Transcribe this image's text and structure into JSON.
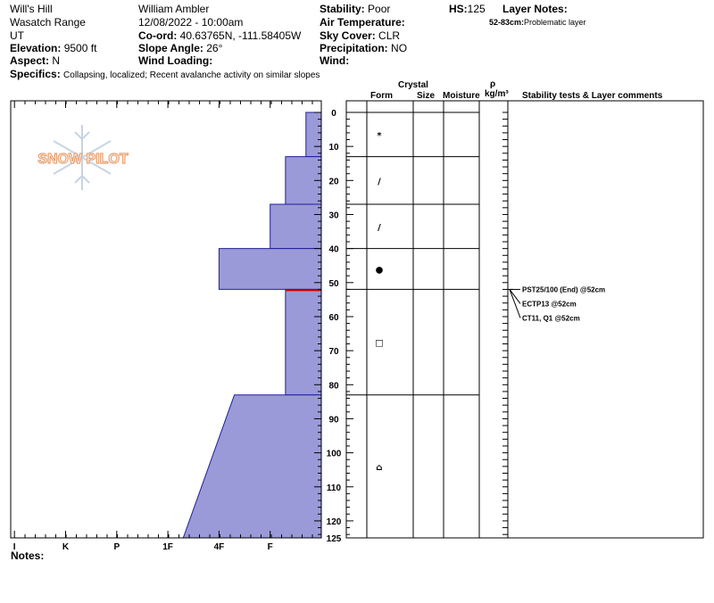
{
  "header": {
    "location": "Will's Hill",
    "range": "Wasatch Range",
    "state": "UT",
    "elevation_label": "Elevation:",
    "elevation_value": "9500 ft",
    "aspect_label": "Aspect:",
    "aspect_value": "N",
    "specifics_label": "Specifics:",
    "specifics_value": "Collapsing, localized; Recent avalanche activity on similar slopes",
    "observer": "William Ambler",
    "datetime": "12/08/2022 - 10:00am",
    "coord_label": "Co-ord:",
    "coord_value": "40.63765N, -111.58405W",
    "slope_label": "Slope Angle:",
    "slope_value": "26°",
    "wind_loading_label": "Wind Loading:",
    "stability_label": "Stability:",
    "stability_value": "Poor",
    "air_temp_label": "Air Temperature:",
    "sky_label": "Sky Cover:",
    "sky_value": "CLR",
    "precip_label": "Precipitation:",
    "precip_value": "NO",
    "wind_label": "Wind:",
    "hs_label": "HS:",
    "hs_value": "125",
    "layer_notes_label": "Layer Notes:",
    "layer_note_depth": "52-83cm:",
    "layer_note_text": "Problematic layer"
  },
  "logo_text": "SNOW PILOT",
  "columns": {
    "crystal": "Crystal",
    "form": "Form",
    "size": "Size",
    "moisture": "Moisture",
    "rho": "ρ",
    "density_unit": "kg/m³",
    "stability": "Stability tests & Layer comments"
  },
  "notes_label": "Notes:",
  "stability_tests": [
    {
      "text": "PST25/100 (End) @52cm",
      "depth": 52
    },
    {
      "text": "ECTP13 @52cm",
      "depth": 52
    },
    {
      "text": "CT11, Q1 @52cm",
      "depth": 52
    }
  ],
  "colors": {
    "profile_fill": "#9a9ad8",
    "profile_stroke": "#1f1f9a",
    "weak_layer": "#cc0000"
  },
  "chart_data": {
    "type": "area",
    "x_axis": "hardness",
    "y_axis": "depth_cm",
    "hardness_labels": [
      "I",
      "K",
      "P",
      "1F",
      "4F",
      "F"
    ],
    "hardness_label_values": [
      6,
      5,
      4,
      3,
      2,
      1
    ],
    "depth_ticks": [
      0,
      10,
      20,
      30,
      40,
      50,
      60,
      70,
      80,
      90,
      100,
      110,
      120,
      125
    ],
    "ylim": [
      0,
      125
    ],
    "layers": [
      {
        "top": 0,
        "bottom": 13,
        "hardness_top": 0.3,
        "hardness_bottom": 0.3,
        "form": "*"
      },
      {
        "top": 13,
        "bottom": 27,
        "hardness_top": 0.7,
        "hardness_bottom": 0.7,
        "form": "/"
      },
      {
        "top": 27,
        "bottom": 40,
        "hardness_top": 1.0,
        "hardness_bottom": 1.0,
        "form": "/"
      },
      {
        "top": 40,
        "bottom": 52,
        "hardness_top": 2.0,
        "hardness_bottom": 2.0,
        "form": "●"
      },
      {
        "top": 52,
        "bottom": 83,
        "hardness_top": 0.7,
        "hardness_bottom": 0.7,
        "form": "□"
      },
      {
        "top": 83,
        "bottom": 125,
        "hardness_top": 1.7,
        "hardness_bottom": 2.7,
        "form": "⌂"
      }
    ],
    "weak_layer_depth": 52,
    "layer_boundaries": [
      13,
      27,
      40,
      52,
      83
    ]
  }
}
